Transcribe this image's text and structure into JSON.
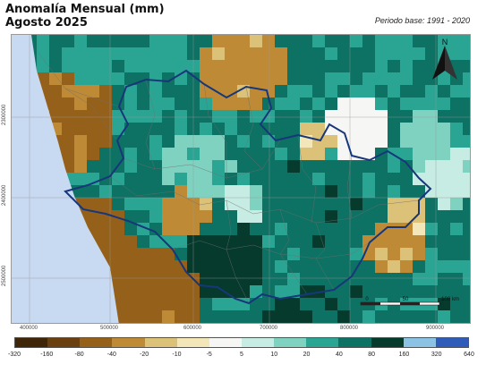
{
  "title": {
    "line1": "Anomalía Mensual (mm)",
    "line2": "Agosto 2025"
  },
  "base_period": "Periodo base: 1991 - 2020",
  "north_label": "N",
  "scale_labels": [
    "0",
    "50",
    "100 km"
  ],
  "x_ticks": [
    "400000",
    "500000",
    "600000",
    "700000",
    "800000",
    "900000"
  ],
  "y_ticks": [
    "2300000",
    "2400000",
    "2500000"
  ],
  "legend": {
    "labels": [
      "-320",
      "-160",
      "-80",
      "-40",
      "-20",
      "-10",
      "-5",
      "5",
      "10",
      "20",
      "40",
      "80",
      "160",
      "320",
      "640"
    ],
    "colors": [
      "#3f2608",
      "#6b4010",
      "#95601a",
      "#bf8a36",
      "#dcc178",
      "#f3e7b9",
      "#f6f6f4",
      "#c6ece3",
      "#7fd2c0",
      "#2aa594",
      "#0d7163",
      "#053a2c",
      "#8cc2e3",
      "#2e5cb8"
    ]
  },
  "colors": {
    "sea": "#c8d9f2",
    "boundary": "#17377a",
    "municipal": "#6f6f6f",
    "grid": "#999999"
  }
}
